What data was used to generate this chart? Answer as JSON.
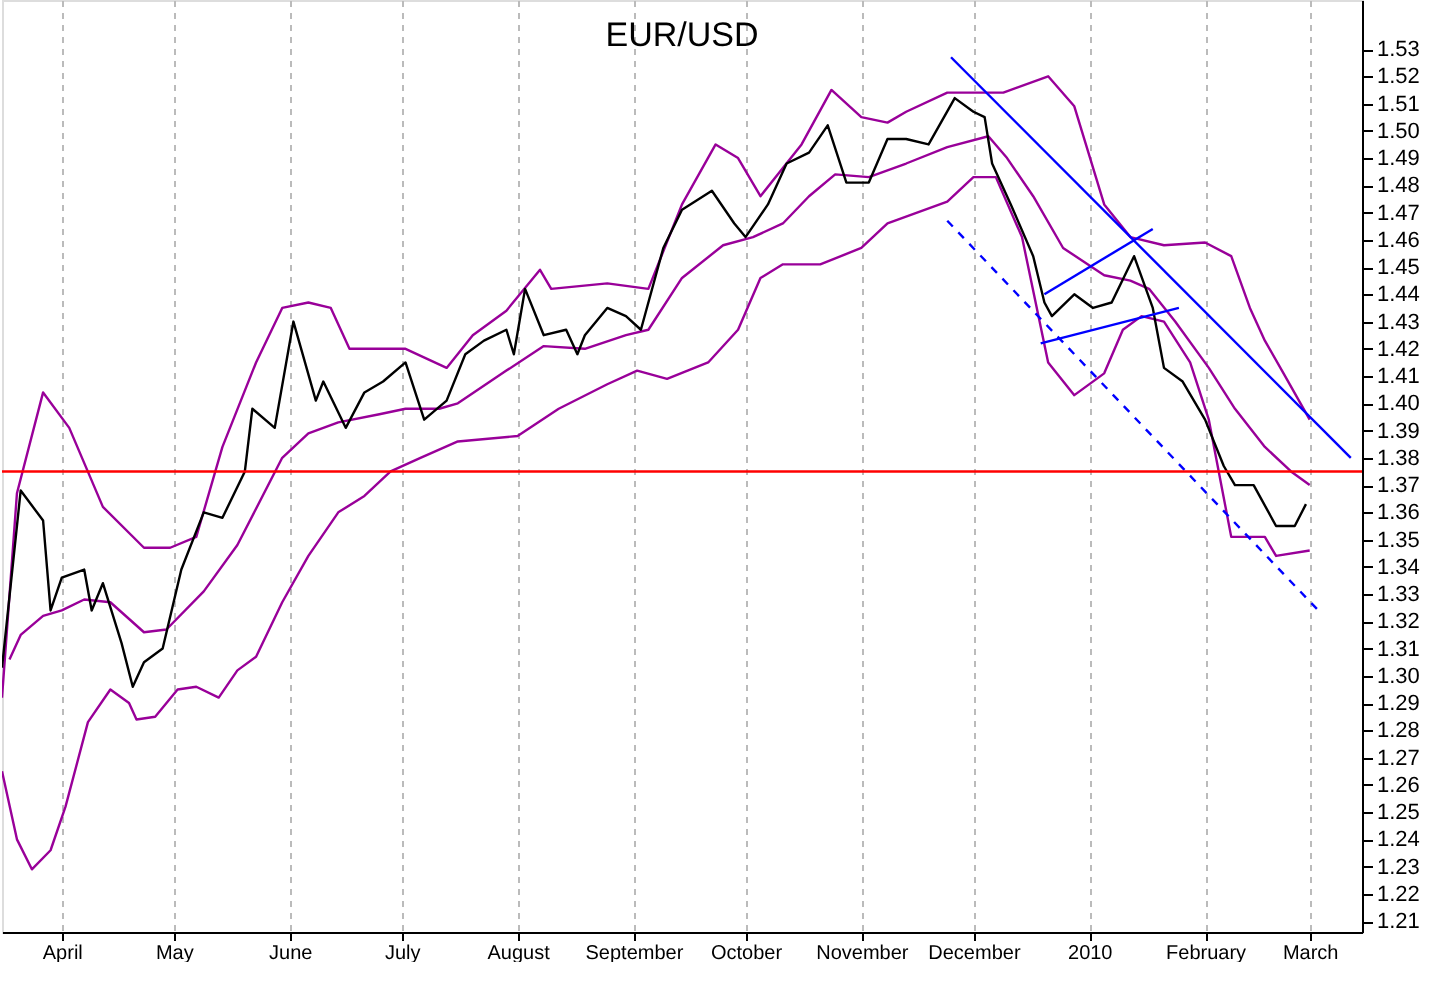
{
  "chart_data": {
    "type": "line",
    "title": "EUR/USD",
    "xlim": [
      "2009-03-16",
      "2010-03-15"
    ],
    "xticks": [
      {
        "value": "2009-04-01",
        "label": "April"
      },
      {
        "value": "2009-05-01",
        "label": "May"
      },
      {
        "value": "2009-06-01",
        "label": "June"
      },
      {
        "value": "2009-07-01",
        "label": "July"
      },
      {
        "value": "2009-08-01",
        "label": "August"
      },
      {
        "value": "2009-09-01",
        "label": "September"
      },
      {
        "value": "2009-10-01",
        "label": "October"
      },
      {
        "value": "2009-11-01",
        "label": "November"
      },
      {
        "value": "2009-12-01",
        "label": "December"
      },
      {
        "value": "2010-01-01",
        "label": "2010"
      },
      {
        "value": "2010-02-01",
        "label": "February"
      },
      {
        "value": "2010-03-01",
        "label": "March"
      }
    ],
    "ylim": [
      1.206,
      1.548
    ],
    "yticks": [
      {
        "value": 1.21,
        "label": "1.21"
      },
      {
        "value": 1.22,
        "label": "1.22"
      },
      {
        "value": 1.23,
        "label": "1.23"
      },
      {
        "value": 1.24,
        "label": "1.24"
      },
      {
        "value": 1.25,
        "label": "1.25"
      },
      {
        "value": 1.26,
        "label": "1.26"
      },
      {
        "value": 1.27,
        "label": "1.27"
      },
      {
        "value": 1.28,
        "label": "1.28"
      },
      {
        "value": 1.29,
        "label": "1.29"
      },
      {
        "value": 1.3,
        "label": "1.30"
      },
      {
        "value": 1.31,
        "label": "1.31"
      },
      {
        "value": 1.32,
        "label": "1.32"
      },
      {
        "value": 1.33,
        "label": "1.33"
      },
      {
        "value": 1.34,
        "label": "1.34"
      },
      {
        "value": 1.35,
        "label": "1.35"
      },
      {
        "value": 1.36,
        "label": "1.36"
      },
      {
        "value": 1.37,
        "label": "1.37"
      },
      {
        "value": 1.38,
        "label": "1.38"
      },
      {
        "value": 1.39,
        "label": "1.39"
      },
      {
        "value": 1.4,
        "label": "1.40"
      },
      {
        "value": 1.41,
        "label": "1.41"
      },
      {
        "value": 1.42,
        "label": "1.42"
      },
      {
        "value": 1.43,
        "label": "1.43"
      },
      {
        "value": 1.44,
        "label": "1.44"
      },
      {
        "value": 1.45,
        "label": "1.45"
      },
      {
        "value": 1.46,
        "label": "1.46"
      },
      {
        "value": 1.47,
        "label": "1.47"
      },
      {
        "value": 1.48,
        "label": "1.48"
      },
      {
        "value": 1.49,
        "label": "1.49"
      },
      {
        "value": 1.5,
        "label": "1.50"
      },
      {
        "value": 1.51,
        "label": "1.51"
      },
      {
        "value": 1.52,
        "label": "1.52"
      },
      {
        "value": 1.53,
        "label": "1.53"
      }
    ],
    "grid": "x",
    "ref_lines": [
      {
        "axis": "y",
        "value": 1.375,
        "color": "#ff0000"
      }
    ],
    "series": [
      {
        "color": "#990099",
        "x": [
          "2009-03-16",
          "2009-03-20",
          "2009-03-27",
          "2009-04-03",
          "2009-04-12",
          "2009-04-23",
          "2009-04-30",
          "2009-05-07",
          "2009-05-14",
          "2009-05-23",
          "2009-05-30",
          "2009-06-06",
          "2009-06-12",
          "2009-06-17",
          "2009-07-02",
          "2009-07-13",
          "2009-07-20",
          "2009-07-29",
          "2009-08-07",
          "2009-08-10",
          "2009-08-25",
          "2009-09-05",
          "2009-09-14",
          "2009-09-23",
          "2009-09-29",
          "2009-10-05",
          "2009-10-16",
          "2009-10-24",
          "2009-11-01",
          "2009-11-08",
          "2009-11-13",
          "2009-11-24",
          "2009-12-09",
          "2009-12-21",
          "2009-12-28",
          "2010-01-05",
          "2010-01-12",
          "2010-01-21",
          "2010-02-01",
          "2010-02-08",
          "2010-02-13",
          "2010-02-17",
          "2010-02-22",
          "2010-03-01"
        ],
        "values": [
          1.292,
          1.367,
          1.404,
          1.391,
          1.362,
          1.347,
          1.347,
          1.351,
          1.384,
          1.415,
          1.435,
          1.437,
          1.435,
          1.42,
          1.42,
          1.413,
          1.425,
          1.434,
          1.449,
          1.442,
          1.444,
          1.442,
          1.473,
          1.495,
          1.49,
          1.476,
          1.495,
          1.515,
          1.505,
          1.503,
          1.507,
          1.514,
          1.514,
          1.52,
          1.509,
          1.473,
          1.461,
          1.458,
          1.459,
          1.454,
          1.435,
          1.423,
          1.411,
          1.394
        ]
      },
      {
        "color": "#990099",
        "x": [
          "2009-03-18",
          "2009-03-21",
          "2009-03-27",
          "2009-04-01",
          "2009-04-07",
          "2009-04-14",
          "2009-04-23",
          "2009-04-29",
          "2009-05-09",
          "2009-05-18",
          "2009-05-30",
          "2009-06-06",
          "2009-06-14",
          "2009-06-25",
          "2009-07-02",
          "2009-07-11",
          "2009-07-16",
          "2009-07-29",
          "2009-08-08",
          "2009-08-19",
          "2009-08-30",
          "2009-09-05",
          "2009-09-14",
          "2009-09-25",
          "2009-10-03",
          "2009-10-11",
          "2009-10-18",
          "2009-10-25",
          "2009-11-03",
          "2009-11-13",
          "2009-11-24",
          "2009-12-05",
          "2009-12-10",
          "2009-12-17",
          "2009-12-25",
          "2010-01-05",
          "2010-01-12",
          "2010-01-17",
          "2010-01-24",
          "2010-02-02",
          "2010-02-09",
          "2010-02-17",
          "2010-02-24",
          "2010-03-01"
        ],
        "values": [
          1.306,
          1.315,
          1.322,
          1.324,
          1.328,
          1.327,
          1.316,
          1.317,
          1.331,
          1.348,
          1.38,
          1.389,
          1.393,
          1.396,
          1.398,
          1.398,
          1.4,
          1.412,
          1.421,
          1.42,
          1.425,
          1.427,
          1.446,
          1.458,
          1.461,
          1.466,
          1.476,
          1.484,
          1.483,
          1.488,
          1.494,
          1.498,
          1.49,
          1.476,
          1.457,
          1.447,
          1.445,
          1.442,
          1.43,
          1.413,
          1.398,
          1.384,
          1.375,
          1.37
        ]
      },
      {
        "color": "#990099",
        "x": [
          "2009-03-16",
          "2009-03-20",
          "2009-03-24",
          "2009-03-29",
          "2009-04-02",
          "2009-04-08",
          "2009-04-14",
          "2009-04-19",
          "2009-04-21",
          "2009-04-26",
          "2009-05-02",
          "2009-05-07",
          "2009-05-13",
          "2009-05-18",
          "2009-05-23",
          "2009-05-30",
          "2009-06-06",
          "2009-06-14",
          "2009-06-21",
          "2009-06-28",
          "2009-07-06",
          "2009-07-16",
          "2009-08-01",
          "2009-08-12",
          "2009-08-25",
          "2009-09-02",
          "2009-09-10",
          "2009-09-21",
          "2009-09-29",
          "2009-10-05",
          "2009-10-11",
          "2009-10-21",
          "2009-11-01",
          "2009-11-08",
          "2009-11-24",
          "2009-12-01",
          "2009-12-07",
          "2009-12-14",
          "2009-12-21",
          "2009-12-28",
          "2010-01-05",
          "2010-01-10",
          "2010-01-15",
          "2010-01-21",
          "2010-01-28",
          "2010-02-02",
          "2010-02-08",
          "2010-02-17",
          "2010-02-20",
          "2010-03-01"
        ],
        "values": [
          1.265,
          1.24,
          1.229,
          1.236,
          1.252,
          1.283,
          1.295,
          1.29,
          1.284,
          1.285,
          1.295,
          1.296,
          1.292,
          1.302,
          1.307,
          1.327,
          1.344,
          1.36,
          1.366,
          1.375,
          1.38,
          1.386,
          1.388,
          1.398,
          1.407,
          1.412,
          1.409,
          1.415,
          1.427,
          1.446,
          1.451,
          1.451,
          1.457,
          1.466,
          1.474,
          1.483,
          1.483,
          1.461,
          1.415,
          1.403,
          1.411,
          1.427,
          1.432,
          1.43,
          1.415,
          1.394,
          1.351,
          1.351,
          1.344,
          1.346
        ]
      },
      {
        "color": "#000000",
        "x": [
          "2009-03-16",
          "2009-03-21",
          "2009-03-27",
          "2009-03-29",
          "2009-04-01",
          "2009-04-07",
          "2009-04-09",
          "2009-04-12",
          "2009-04-17",
          "2009-04-20",
          "2009-04-23",
          "2009-04-28",
          "2009-05-03",
          "2009-05-09",
          "2009-05-14",
          "2009-05-20",
          "2009-05-22",
          "2009-05-28",
          "2009-06-02",
          "2009-06-08",
          "2009-06-10",
          "2009-06-16",
          "2009-06-21",
          "2009-06-26",
          "2009-07-02",
          "2009-07-07",
          "2009-07-13",
          "2009-07-18",
          "2009-07-23",
          "2009-07-29",
          "2009-07-31",
          "2009-08-03",
          "2009-08-08",
          "2009-08-14",
          "2009-08-17",
          "2009-08-19",
          "2009-08-25",
          "2009-08-30",
          "2009-09-03",
          "2009-09-09",
          "2009-09-14",
          "2009-09-22",
          "2009-09-28",
          "2009-10-01",
          "2009-10-07",
          "2009-10-12",
          "2009-10-18",
          "2009-10-23",
          "2009-10-28",
          "2009-11-03",
          "2009-11-08",
          "2009-11-13",
          "2009-11-19",
          "2009-11-26",
          "2009-12-01",
          "2009-12-04",
          "2009-12-06",
          "2009-12-11",
          "2009-12-17",
          "2009-12-20",
          "2009-12-22",
          "2009-12-28",
          "2010-01-02",
          "2010-01-07",
          "2010-01-13",
          "2010-01-18",
          "2010-01-21",
          "2010-01-26",
          "2010-02-01",
          "2010-02-06",
          "2010-02-09",
          "2010-02-14",
          "2010-02-20",
          "2010-02-25",
          "2010-02-28"
        ],
        "values": [
          1.303,
          1.368,
          1.357,
          1.324,
          1.336,
          1.339,
          1.324,
          1.334,
          1.312,
          1.296,
          1.305,
          1.31,
          1.339,
          1.36,
          1.358,
          1.375,
          1.398,
          1.391,
          1.43,
          1.401,
          1.408,
          1.391,
          1.404,
          1.408,
          1.415,
          1.394,
          1.401,
          1.418,
          1.423,
          1.427,
          1.418,
          1.442,
          1.425,
          1.427,
          1.418,
          1.425,
          1.435,
          1.432,
          1.427,
          1.457,
          1.471,
          1.478,
          1.466,
          1.461,
          1.473,
          1.488,
          1.492,
          1.502,
          1.481,
          1.481,
          1.497,
          1.497,
          1.495,
          1.512,
          1.507,
          1.505,
          1.488,
          1.473,
          1.454,
          1.437,
          1.432,
          1.44,
          1.435,
          1.437,
          1.454,
          1.435,
          1.413,
          1.408,
          1.394,
          1.377,
          1.37,
          1.37,
          1.355,
          1.355,
          1.363
        ]
      },
      {
        "color": "#0000ff",
        "x": [
          "2009-11-25",
          "2010-03-12"
        ],
        "values": [
          1.527,
          1.38
        ]
      },
      {
        "color": "#0000ff",
        "line_style": "dashed",
        "x": [
          "2009-11-24",
          "2010-03-04"
        ],
        "values": [
          1.467,
          1.323
        ]
      },
      {
        "color": "#0000ff",
        "x": [
          "2009-12-20",
          "2010-01-18"
        ],
        "values": [
          1.44,
          1.464
        ]
      },
      {
        "color": "#0000ff",
        "x": [
          "2009-12-19",
          "2010-01-25"
        ],
        "values": [
          1.422,
          1.435
        ]
      }
    ]
  }
}
